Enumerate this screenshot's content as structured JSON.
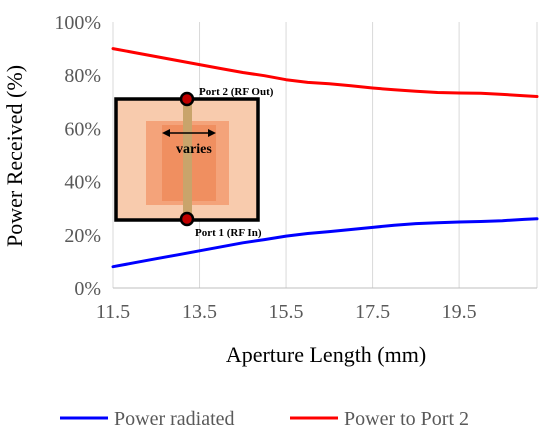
{
  "chart_data": {
    "type": "line",
    "xlabel": "Aperture Length (mm)",
    "ylabel": "Power Received (%)",
    "xlim": [
      11.5,
      21.3
    ],
    "ylim": [
      0,
      100
    ],
    "x_ticks": [
      "11.5",
      "13.5",
      "15.5",
      "17.5",
      "19.5"
    ],
    "y_ticks": [
      "0%",
      "20%",
      "40%",
      "60%",
      "80%",
      "100%"
    ],
    "grid": "vertical",
    "legend_position": "bottom",
    "series": [
      {
        "name": "Power radiated",
        "color": "#0000ff",
        "x": [
          11.5,
          12.0,
          12.5,
          13.0,
          13.5,
          14.0,
          14.5,
          15.0,
          15.5,
          16.0,
          16.5,
          17.0,
          17.5,
          18.0,
          18.5,
          19.0,
          19.5,
          20.0,
          20.5,
          21.0,
          21.3
        ],
        "y": [
          8.0,
          9.5,
          11.0,
          12.5,
          14.0,
          15.5,
          17.0,
          18.2,
          19.5,
          20.5,
          21.2,
          22.0,
          22.8,
          23.6,
          24.2,
          24.5,
          24.8,
          25.0,
          25.3,
          25.8,
          26.0
        ]
      },
      {
        "name": "Power to Port 2",
        "color": "#ff0000",
        "x": [
          11.5,
          12.0,
          12.5,
          13.0,
          13.5,
          14.0,
          14.5,
          15.0,
          15.5,
          16.0,
          16.5,
          17.0,
          17.5,
          18.0,
          18.5,
          19.0,
          19.5,
          20.0,
          20.5,
          21.0,
          21.3
        ],
        "y": [
          90.0,
          88.5,
          87.0,
          85.5,
          84.0,
          82.5,
          81.0,
          79.8,
          78.3,
          77.3,
          76.8,
          76.0,
          75.2,
          74.5,
          74.0,
          73.5,
          73.3,
          73.2,
          72.8,
          72.3,
          72.0
        ]
      }
    ],
    "inset": {
      "port_top_label": "Port 2 (RF Out)",
      "port_bottom_label": "Port 1 (RF In)",
      "arrow_label": "varies",
      "colors": {
        "outer_fill": "#f8cbad",
        "inner_fill": "#f4a37a",
        "core_fill": "#f08f60",
        "strip": "#c9a46b",
        "border": "#000000",
        "port": "#c00000"
      }
    }
  }
}
